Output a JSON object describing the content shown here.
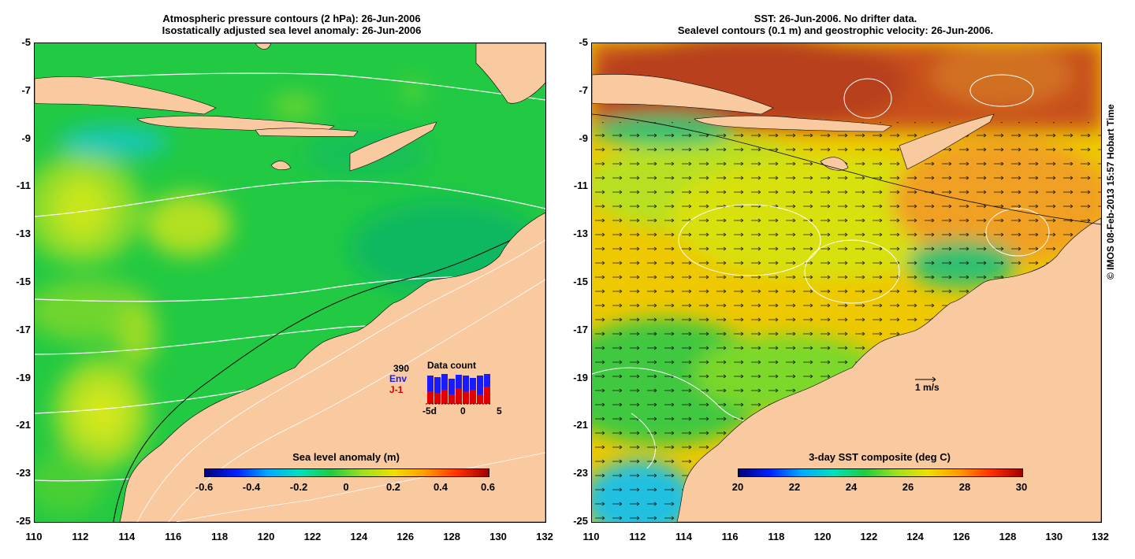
{
  "left_panel": {
    "title_line1": "Atmospheric pressure contours (2 hPa): 26-Jun-2006",
    "title_line2": "Isostatically adjusted sea level anomaly: 26-Jun-2006",
    "colorbar": {
      "title": "Sea level anomaly (m)",
      "labels": [
        "-0.6",
        "-0.4",
        "-0.2",
        "0",
        "0.2",
        "0.4",
        "0.6"
      ]
    },
    "inset": {
      "title": "Data count",
      "count": "390",
      "series": [
        "Env",
        "J-1"
      ],
      "series_colors": [
        "#1a1aff",
        "#e00000"
      ],
      "x_labels": [
        "-5d",
        "0",
        "5"
      ]
    }
  },
  "right_panel": {
    "title_line1": "SST: 26-Jun-2006. No drifter data.",
    "title_line2": "Sealevel contours (0.1 m) and geostrophic velocity: 26-Jun-2006.",
    "colorbar": {
      "title": "3-day SST composite (deg C)",
      "labels": [
        "20",
        "22",
        "24",
        "26",
        "28",
        "30"
      ]
    },
    "velocity_scale": "1 m/s"
  },
  "axes": {
    "y_labels": [
      "-5",
      "-7",
      "-9",
      "-11",
      "-13",
      "-15",
      "-17",
      "-19",
      "-21",
      "-23",
      "-25"
    ],
    "x_labels": [
      "110",
      "112",
      "114",
      "116",
      "118",
      "120",
      "122",
      "124",
      "126",
      "128",
      "130",
      "132"
    ]
  },
  "copyright": "© IMOS 08-Feb-2013 15:57 Hobart Time",
  "colors": {
    "land": "#f9c9a0",
    "sla_dominant": "#22cc44",
    "sst_north": "#c0441a",
    "sst_mid": "#e8d600",
    "sst_coast": "#1630c8"
  }
}
